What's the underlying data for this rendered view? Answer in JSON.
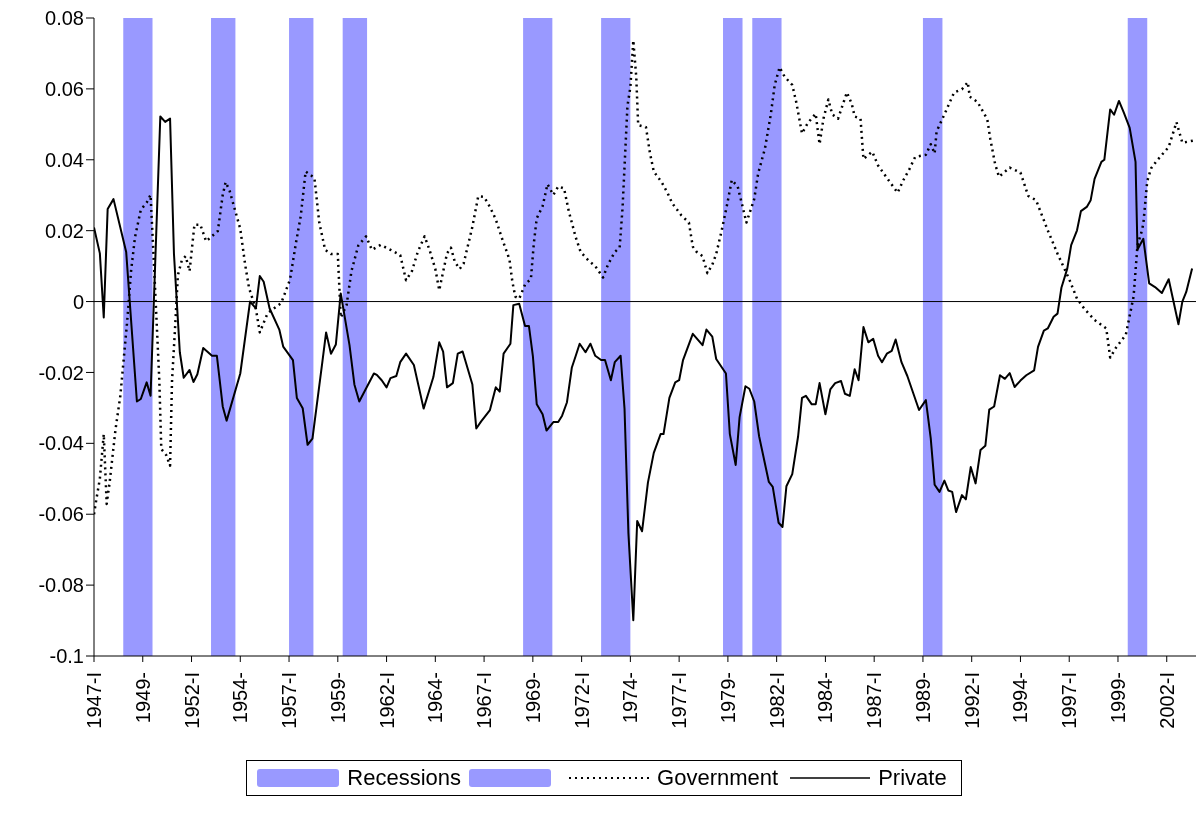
{
  "chart_data": {
    "type": "line",
    "xlim": [
      1947,
      2003.5
    ],
    "ylim": [
      -0.1,
      0.08
    ],
    "xticks": [
      {
        "value": 1947,
        "label": "1947-I"
      },
      {
        "value": 1949.5,
        "label": "1949-"
      },
      {
        "value": 1952,
        "label": "1952-I"
      },
      {
        "value": 1954.5,
        "label": "1954-"
      },
      {
        "value": 1957,
        "label": "1957-I"
      },
      {
        "value": 1959.5,
        "label": "1959-"
      },
      {
        "value": 1962,
        "label": "1962-I"
      },
      {
        "value": 1964.5,
        "label": "1964-"
      },
      {
        "value": 1967,
        "label": "1967-I"
      },
      {
        "value": 1969.5,
        "label": "1969-"
      },
      {
        "value": 1972,
        "label": "1972-I"
      },
      {
        "value": 1974.5,
        "label": "1974-"
      },
      {
        "value": 1977,
        "label": "1977-I"
      },
      {
        "value": 1979.5,
        "label": "1979-"
      },
      {
        "value": 1982,
        "label": "1982-I"
      },
      {
        "value": 1984.5,
        "label": "1984-"
      },
      {
        "value": 1987,
        "label": "1987-I"
      },
      {
        "value": 1989.5,
        "label": "1989-"
      },
      {
        "value": 1992,
        "label": "1992-I"
      },
      {
        "value": 1994.5,
        "label": "1994-"
      },
      {
        "value": 1997,
        "label": "1997-I"
      },
      {
        "value": 1999.5,
        "label": "1999-"
      },
      {
        "value": 2002,
        "label": "2002-I"
      }
    ],
    "yticks": [
      0.08,
      0.06,
      0.04,
      0.02,
      0,
      -0.02,
      -0.04,
      -0.06,
      -0.08,
      -0.1
    ],
    "grid": false,
    "legend": "bottom",
    "marker": "none",
    "bands": [
      {
        "axis": "x",
        "from": 1948.5,
        "to": 1950,
        "label": "Recessions",
        "color": "#9999ff"
      },
      {
        "axis": "x",
        "from": 1953,
        "to": 1954.25,
        "color": "#9999ff"
      },
      {
        "axis": "x",
        "from": 1957,
        "to": 1958.25,
        "color": "#9999ff"
      },
      {
        "axis": "x",
        "from": 1959.75,
        "to": 1961,
        "color": "#9999ff"
      },
      {
        "axis": "x",
        "from": 1969,
        "to": 1970.5,
        "color": "#9999ff"
      },
      {
        "axis": "x",
        "from": 1973,
        "to": 1974.5,
        "color": "#9999ff"
      },
      {
        "axis": "x",
        "from": 1979.25,
        "to": 1980.25,
        "color": "#9999ff"
      },
      {
        "axis": "x",
        "from": 1980.75,
        "to": 1982.25,
        "color": "#9999ff"
      },
      {
        "axis": "x",
        "from": 1989.5,
        "to": 1990.5,
        "color": "#9999ff"
      },
      {
        "axis": "x",
        "from": 2000,
        "to": 2001,
        "color": "#9999ff"
      }
    ],
    "ref_lines": [
      {
        "axis": "y",
        "value": 0,
        "color": "#000000"
      }
    ],
    "series": [
      {
        "name": "Government",
        "color": "#000000",
        "line_style": "dotted",
        "x": [
          1947.0,
          1947.1,
          1947.3,
          1947.5,
          1947.65,
          1947.8,
          1948.1,
          1948.35,
          1948.7,
          1948.9,
          1949.1,
          1949.4,
          1949.7,
          1949.9,
          1950.05,
          1950.2,
          1950.35,
          1950.45,
          1950.7,
          1950.9,
          1951.0,
          1951.15,
          1951.3,
          1951.5,
          1951.7,
          1951.9,
          1952.15,
          1952.45,
          1952.75,
          1953.35,
          1953.6,
          1953.75,
          1953.95,
          1954.5,
          1954.75,
          1954.95,
          1955.3,
          1955.5,
          1955.9,
          1956.6,
          1957.05,
          1957.35,
          1957.6,
          1957.85,
          1958.3,
          1958.55,
          1958.85,
          1959.15,
          1959.5,
          1959.65,
          1959.95,
          1960.2,
          1960.55,
          1960.95,
          1961.25,
          1961.7,
          1962.2,
          1962.7,
          1963.0,
          1963.3,
          1963.6,
          1963.95,
          1964.2,
          1964.5,
          1964.7,
          1965.1,
          1965.3,
          1965.5,
          1965.75,
          1965.95,
          1966.4,
          1966.7,
          1967.0,
          1967.3,
          1967.6,
          1967.9,
          1968.3,
          1968.45,
          1968.6,
          1968.8,
          1969.1,
          1969.4,
          1969.55,
          1969.7,
          1970.0,
          1970.25,
          1970.55,
          1970.8,
          1971.1,
          1971.35,
          1971.7,
          1971.95,
          1972.35,
          1972.7,
          1973.1,
          1973.35,
          1973.7,
          1973.95,
          1974.1,
          1974.35,
          1974.5,
          1974.65,
          1974.8,
          1974.9,
          1975.3,
          1975.5,
          1975.7,
          1976.1,
          1976.4,
          1976.65,
          1977.1,
          1977.5,
          1977.7,
          1977.9,
          1978.2,
          1978.45,
          1978.7,
          1978.9,
          1979.2,
          1979.45,
          1979.7,
          1980.0,
          1980.45,
          1980.85,
          1981.05,
          1981.4,
          1981.7,
          1981.9,
          1982.15,
          1982.4,
          1982.8,
          1983.0,
          1983.3,
          1983.6,
          1984.0,
          1984.2,
          1984.4,
          1984.65,
          1984.85,
          1985.15,
          1985.6,
          1985.85,
          1986.0,
          1986.3,
          1986.45,
          1986.9,
          1987.2,
          1987.65,
          1988.2,
          1988.5,
          1988.8,
          1989.1,
          1989.65,
          1989.9,
          1990.1,
          1990.2,
          1990.6,
          1991.1,
          1991.5,
          1991.8,
          1991.9,
          1992.3,
          1992.8,
          1992.95,
          1993.2,
          1993.4,
          1993.95,
          1994.5,
          1994.9,
          1995.3,
          1995.9,
          1996.4,
          1997.0,
          1997.4,
          1997.8,
          1998.3,
          1998.9,
          1999.1,
          1999.4,
          1999.9,
          2000.3,
          2000.5,
          2000.7,
          2000.8,
          2001.0,
          2001.2,
          2001.5,
          2002.1,
          2002.5,
          2002.8,
          2003.35
        ],
        "values": [
          -0.06,
          -0.0565,
          -0.05,
          -0.0374,
          -0.0571,
          -0.0511,
          -0.0362,
          -0.0266,
          -0.0057,
          0.0086,
          0.0181,
          0.0259,
          0.0279,
          0.0301,
          0.0134,
          -0.0045,
          -0.0224,
          -0.0416,
          -0.0433,
          -0.0463,
          -0.0224,
          -0.0081,
          0.0074,
          0.0116,
          0.0128,
          0.0086,
          0.0217,
          0.0217,
          0.017,
          0.0199,
          0.0301,
          0.0337,
          0.0313,
          0.0205,
          0.0104,
          0.0038,
          -0.0021,
          -0.0087,
          -0.0033,
          -0.0004,
          0.0062,
          0.0164,
          0.0241,
          0.0367,
          0.0349,
          0.0223,
          0.0146,
          0.0134,
          0.0134,
          -0.0045,
          -0.001,
          0.0086,
          0.0158,
          0.0184,
          0.0146,
          0.016,
          0.0146,
          0.0131,
          0.006,
          0.0086,
          0.014,
          0.0184,
          0.0146,
          0.0092,
          0.0032,
          0.0136,
          0.0152,
          0.0112,
          0.0092,
          0.0107,
          0.0211,
          0.0297,
          0.0295,
          0.0267,
          0.0232,
          0.0181,
          0.0119,
          0.0056,
          0.0014,
          0.0008,
          0.0048,
          0.0064,
          0.0164,
          0.0235,
          0.0269,
          0.0331,
          0.0301,
          0.0325,
          0.0319,
          0.0253,
          0.0181,
          0.014,
          0.0116,
          0.01,
          0.0068,
          0.0104,
          0.014,
          0.0152,
          0.0265,
          0.0552,
          0.0605,
          0.0737,
          0.0635,
          0.0498,
          0.0492,
          0.042,
          0.0367,
          0.0337,
          0.0307,
          0.0277,
          0.0244,
          0.0223,
          0.0155,
          0.014,
          0.0128,
          0.008,
          0.0104,
          0.0134,
          0.0205,
          0.0271,
          0.0343,
          0.0325,
          0.0223,
          0.0289,
          0.0361,
          0.0432,
          0.0528,
          0.0611,
          0.0661,
          0.0635,
          0.0611,
          0.0564,
          0.0474,
          0.0504,
          0.053,
          0.0444,
          0.0516,
          0.057,
          0.0528,
          0.0516,
          0.059,
          0.0558,
          0.0522,
          0.0516,
          0.0402,
          0.0423,
          0.0384,
          0.0349,
          0.0307,
          0.0343,
          0.0373,
          0.0408,
          0.0414,
          0.0444,
          0.0418,
          0.048,
          0.0528,
          0.059,
          0.0599,
          0.0619,
          0.0578,
          0.0563,
          0.0514,
          0.046,
          0.0388,
          0.0352,
          0.0378,
          0.0364,
          0.0298,
          0.0286,
          0.0201,
          0.0135,
          0.0063,
          0.0008,
          -0.0022,
          -0.0052,
          -0.0076,
          -0.0158,
          -0.013,
          -0.0094,
          0.0014,
          0.0159,
          0.0195,
          0.0219,
          0.034,
          0.0376,
          0.0398,
          0.0436,
          0.0506,
          0.0448,
          0.0454
        ]
      },
      {
        "name": "Private",
        "color": "#000000",
        "line_style": "solid",
        "x": [
          1947.0,
          1947.3,
          1947.5,
          1947.7,
          1948.0,
          1948.65,
          1949.2,
          1949.4,
          1949.7,
          1949.9,
          1950.4,
          1950.65,
          1950.9,
          1951.1,
          1951.4,
          1951.6,
          1951.9,
          1952.1,
          1952.3,
          1952.6,
          1953.05,
          1953.3,
          1953.6,
          1953.8,
          1954.5,
          1955.0,
          1955.3,
          1955.5,
          1955.7,
          1956.0,
          1956.5,
          1956.7,
          1957.2,
          1957.4,
          1957.7,
          1957.95,
          1958.2,
          1958.7,
          1958.9,
          1959.15,
          1959.4,
          1959.65,
          1960.1,
          1960.35,
          1960.6,
          1961.35,
          1961.5,
          1961.75,
          1962.0,
          1962.2,
          1962.5,
          1962.7,
          1963.0,
          1963.4,
          1963.9,
          1964.4,
          1964.7,
          1964.9,
          1965.1,
          1965.4,
          1965.65,
          1965.9,
          1966.4,
          1966.6,
          1966.85,
          1967.3,
          1967.6,
          1967.8,
          1968.0,
          1968.35,
          1968.5,
          1968.8,
          1969.1,
          1969.3,
          1969.5,
          1969.7,
          1970.0,
          1970.2,
          1970.55,
          1970.8,
          1971.0,
          1971.25,
          1971.5,
          1971.7,
          1971.9,
          1972.2,
          1972.45,
          1972.7,
          1973.0,
          1973.2,
          1973.5,
          1973.7,
          1974.0,
          1974.2,
          1974.4,
          1974.65,
          1974.85,
          1975.1,
          1975.4,
          1975.7,
          1976.05,
          1976.2,
          1976.5,
          1976.8,
          1977.0,
          1977.2,
          1977.7,
          1978.2,
          1978.4,
          1978.7,
          1978.9,
          1979.4,
          1979.6,
          1979.9,
          1980.1,
          1980.4,
          1980.6,
          1980.85,
          1981.1,
          1981.6,
          1981.8,
          1982.1,
          1982.3,
          1982.5,
          1982.8,
          1983.1,
          1983.3,
          1983.5,
          1983.8,
          1984.0,
          1984.2,
          1984.5,
          1984.75,
          1985.0,
          1985.3,
          1985.5,
          1985.75,
          1986.0,
          1986.2,
          1986.45,
          1986.7,
          1986.95,
          1987.2,
          1987.4,
          1987.65,
          1987.9,
          1988.1,
          1988.4,
          1988.7,
          1989.3,
          1989.65,
          1989.9,
          1990.1,
          1990.35,
          1990.6,
          1990.8,
          1991.0,
          1991.2,
          1991.5,
          1991.7,
          1991.95,
          1992.2,
          1992.45,
          1992.7,
          1992.9,
          1993.15,
          1993.45,
          1993.7,
          1993.95,
          1994.2,
          1994.5,
          1994.8,
          1995.2,
          1995.4,
          1995.7,
          1995.9,
          1996.2,
          1996.4,
          1996.6,
          1996.9,
          1997.1,
          1997.4,
          1997.6,
          1997.9,
          1998.1,
          1998.3,
          1998.65,
          1998.8,
          1999.1,
          1999.3,
          1999.55,
          1999.8,
          2000.1,
          2000.4,
          2000.5,
          2000.8,
          2001.1,
          2001.4,
          2001.75,
          2002.1,
          2002.6,
          2002.8,
          2003.0,
          2003.3
        ],
        "values": [
          0.0209,
          0.0136,
          -0.0045,
          0.0261,
          0.0289,
          0.014,
          -0.0282,
          -0.0275,
          -0.0228,
          -0.0266,
          0.0522,
          0.0507,
          0.0516,
          0.0134,
          -0.0143,
          -0.0215,
          -0.0193,
          -0.0227,
          -0.0205,
          -0.0131,
          -0.0153,
          -0.0153,
          -0.0296,
          -0.0336,
          -0.0203,
          0.0,
          -0.0019,
          0.0072,
          0.0056,
          -0.0019,
          -0.0079,
          -0.0127,
          -0.0165,
          -0.0272,
          -0.0301,
          -0.0404,
          -0.0387,
          -0.0174,
          -0.0087,
          -0.0147,
          -0.0121,
          0.0023,
          -0.0123,
          -0.0234,
          -0.0282,
          -0.0203,
          -0.0207,
          -0.0222,
          -0.0242,
          -0.0216,
          -0.021,
          -0.0171,
          -0.0147,
          -0.0179,
          -0.0302,
          -0.0213,
          -0.0115,
          -0.0141,
          -0.0242,
          -0.023,
          -0.0147,
          -0.0141,
          -0.0234,
          -0.0358,
          -0.0338,
          -0.0306,
          -0.0242,
          -0.0254,
          -0.0147,
          -0.0119,
          -0.001,
          -0.0006,
          -0.0069,
          -0.0069,
          -0.0153,
          -0.029,
          -0.0318,
          -0.0364,
          -0.034,
          -0.034,
          -0.0322,
          -0.0284,
          -0.0186,
          -0.0153,
          -0.0119,
          -0.0143,
          -0.0119,
          -0.0153,
          -0.0165,
          -0.0165,
          -0.0222,
          -0.0171,
          -0.0153,
          -0.0302,
          -0.0654,
          -0.0899,
          -0.0619,
          -0.0648,
          -0.0511,
          -0.0427,
          -0.0374,
          -0.0374,
          -0.0272,
          -0.0228,
          -0.0222,
          -0.0165,
          -0.0091,
          -0.0123,
          -0.0079,
          -0.0099,
          -0.0162,
          -0.0203,
          -0.0374,
          -0.0461,
          -0.0326,
          -0.0239,
          -0.0246,
          -0.0282,
          -0.038,
          -0.0509,
          -0.0523,
          -0.0624,
          -0.0636,
          -0.0521,
          -0.0487,
          -0.038,
          -0.0272,
          -0.0266,
          -0.029,
          -0.029,
          -0.023,
          -0.0318,
          -0.0248,
          -0.023,
          -0.0224,
          -0.026,
          -0.0266,
          -0.0191,
          -0.0222,
          -0.0072,
          -0.0115,
          -0.0105,
          -0.0153,
          -0.0171,
          -0.0147,
          -0.0139,
          -0.0107,
          -0.0171,
          -0.021,
          -0.0306,
          -0.0278,
          -0.0386,
          -0.0517,
          -0.0537,
          -0.0505,
          -0.0533,
          -0.0537,
          -0.0594,
          -0.0546,
          -0.0558,
          -0.0467,
          -0.0513,
          -0.0419,
          -0.0407,
          -0.0305,
          -0.0296,
          -0.0208,
          -0.0218,
          -0.0202,
          -0.0241,
          -0.0223,
          -0.0208,
          -0.0194,
          -0.0128,
          -0.0082,
          -0.0076,
          -0.0043,
          -0.0034,
          0.0039,
          0.0093,
          0.0159,
          0.0201,
          0.0255,
          0.0267,
          0.0286,
          0.0346,
          0.0394,
          0.04,
          0.0542,
          0.0527,
          0.0566,
          0.0533,
          0.049,
          0.0394,
          0.0147,
          0.0177,
          0.0051,
          0.0041,
          0.0024,
          0.0063,
          -0.0064,
          0.0,
          0.0027,
          0.0093
        ]
      }
    ]
  }
}
